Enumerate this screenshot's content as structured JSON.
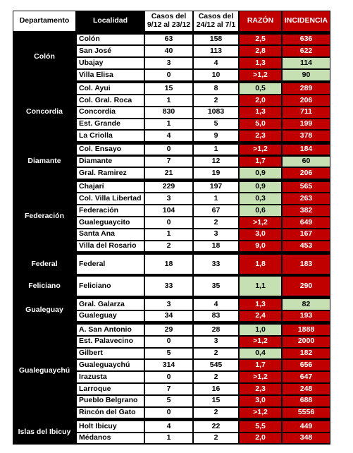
{
  "table": {
    "header": [
      "Departamento",
      "Localidad",
      "Casos del 9/12 al 23/12",
      "Casos del 24/12 al 7/1",
      "RAZÓN",
      "INCIDENCIA"
    ],
    "colors": {
      "red": "#c00000",
      "green": "#c6e0b4"
    },
    "groups": [
      {
        "departamento": "Colón",
        "rows": [
          {
            "cells": [
              "Colón",
              63,
              158,
              "2,5",
              636
            ],
            "green": []
          },
          {
            "cells": [
              "San José",
              40,
              113,
              "2,8",
              622
            ],
            "green": []
          },
          {
            "cells": [
              "Ubajay",
              3,
              4,
              "1,3",
              114
            ],
            "green": [
              4
            ]
          },
          {
            "cells": [
              "Villa Elisa",
              0,
              10,
              ">1,2",
              90
            ],
            "green": [
              4
            ]
          }
        ]
      },
      {
        "departamento": "Concordia",
        "rows": [
          {
            "cells": [
              "Col. Ayui",
              15,
              8,
              "0,5",
              289
            ],
            "green": [
              3
            ]
          },
          {
            "cells": [
              "Col. Gral. Roca",
              1,
              2,
              "2,0",
              206
            ],
            "green": []
          },
          {
            "cells": [
              "Concordia",
              830,
              1083,
              "1,3",
              711
            ],
            "green": []
          },
          {
            "cells": [
              "Est. Grande",
              1,
              5,
              "5,0",
              199
            ],
            "green": []
          },
          {
            "cells": [
              "La Criolla",
              4,
              9,
              "2,3",
              378
            ],
            "green": []
          }
        ]
      },
      {
        "departamento": "Diamante",
        "rows": [
          {
            "cells": [
              "Col. Ensayo",
              0,
              1,
              ">1,2",
              184
            ],
            "green": []
          },
          {
            "cells": [
              "Diamante",
              7,
              12,
              "1,7",
              60
            ],
            "green": [
              4
            ]
          },
          {
            "cells": [
              "Gral. Ramirez",
              21,
              19,
              "0,9",
              206
            ],
            "green": [
              3
            ]
          }
        ]
      },
      {
        "departamento": "Federación",
        "rows": [
          {
            "cells": [
              "Chajarí",
              229,
              197,
              "0,9",
              565
            ],
            "green": [
              3
            ]
          },
          {
            "cells": [
              "Col. Villa Libertad",
              3,
              1,
              "0,3",
              263
            ],
            "green": [
              3
            ]
          },
          {
            "cells": [
              "Federación",
              104,
              67,
              "0,6",
              382
            ],
            "green": [
              3
            ]
          },
          {
            "cells": [
              "Gualeguaycito",
              0,
              2,
              ">1,2",
              649
            ],
            "green": []
          },
          {
            "cells": [
              "Santa Ana",
              1,
              3,
              "3,0",
              167
            ],
            "green": []
          },
          {
            "cells": [
              "Villa del Rosario",
              2,
              18,
              "9,0",
              453
            ],
            "green": []
          }
        ]
      },
      {
        "departamento": "Federal",
        "rows": [
          {
            "cells": [
              "Federal",
              18,
              33,
              "1,8",
              183
            ],
            "green": []
          }
        ]
      },
      {
        "departamento": "Feliciano",
        "rows": [
          {
            "cells": [
              "Feliciano",
              33,
              35,
              "1,1",
              290
            ],
            "green": [
              3
            ]
          }
        ]
      },
      {
        "departamento": "Gualeguay",
        "rows": [
          {
            "cells": [
              "Gral. Galarza",
              3,
              4,
              "1,3",
              82
            ],
            "green": [
              4
            ]
          },
          {
            "cells": [
              "Gualeguay",
              34,
              83,
              "2,4",
              193
            ],
            "green": []
          }
        ]
      },
      {
        "departamento": "Gualeguaychú",
        "rows": [
          {
            "cells": [
              "A. San Antonio",
              29,
              28,
              "1,0",
              1888
            ],
            "green": [
              3
            ]
          },
          {
            "cells": [
              "Est. Palavecino",
              0,
              3,
              ">1,2",
              2000
            ],
            "green": []
          },
          {
            "cells": [
              "Gilbert",
              5,
              2,
              "0,4",
              182
            ],
            "green": [
              3
            ]
          },
          {
            "cells": [
              "Gualeguaychú",
              314,
              545,
              "1,7",
              656
            ],
            "green": []
          },
          {
            "cells": [
              "Irazusta",
              0,
              2,
              ">1,2",
              647
            ],
            "green": []
          },
          {
            "cells": [
              "Larroque",
              7,
              16,
              "2,3",
              248
            ],
            "green": []
          },
          {
            "cells": [
              "Pueblo Belgrano",
              5,
              15,
              "3,0",
              688
            ],
            "green": []
          },
          {
            "cells": [
              "Rincón del Gato",
              0,
              2,
              ">1,2",
              5556
            ],
            "green": []
          }
        ]
      },
      {
        "departamento": "Islas del Ibicuy",
        "rows": [
          {
            "cells": [
              "Holt Ibicuy",
              4,
              22,
              "5,5",
              449
            ],
            "green": []
          },
          {
            "cells": [
              "Médanos",
              1,
              2,
              "2,0",
              348
            ],
            "green": []
          }
        ]
      }
    ]
  }
}
